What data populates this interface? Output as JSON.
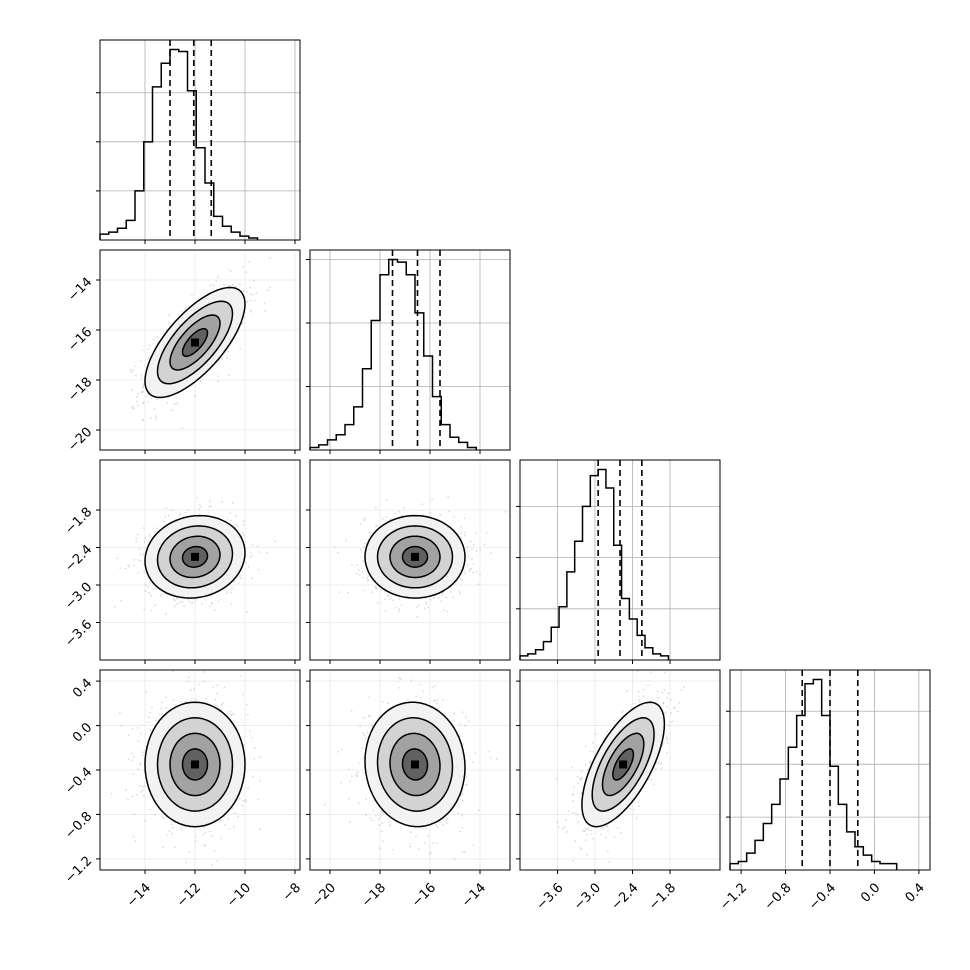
{
  "chart_data": {
    "type": "corner",
    "grid": true,
    "quantile_lines": "dashed",
    "parameters": [
      {
        "name": "",
        "range": [
          -15.8,
          -7.8
        ],
        "ticks": [
          -14,
          -12,
          -10,
          -8
        ],
        "tick_labels": [
          "−14",
          "−12",
          "−10",
          "−8"
        ],
        "quantiles": [
          -13.0,
          -12.05,
          -11.35
        ],
        "histogram": {
          "bin_start": -15.8,
          "bin_width": 0.35,
          "counts": [
            3,
            4,
            6,
            10,
            25,
            50,
            78,
            90,
            97,
            96,
            76,
            47,
            29,
            12,
            7,
            4,
            2,
            1
          ]
        }
      },
      {
        "name": "",
        "range": [
          -20.8,
          -12.8
        ],
        "ticks": [
          -20,
          -18,
          -16,
          -14
        ],
        "tick_labels": [
          "−20",
          "−18",
          "−16",
          "−14"
        ],
        "quantiles": [
          -17.5,
          -16.5,
          -15.6
        ],
        "histogram": {
          "bin_start": -20.8,
          "bin_width": 0.35,
          "counts": [
            1,
            2,
            4,
            6,
            10,
            17,
            32,
            51,
            69,
            75,
            74,
            69,
            54,
            37,
            21,
            10,
            5,
            3,
            1
          ]
        }
      },
      {
        "name": "",
        "range": [
          -4.2,
          -1.0
        ],
        "ticks": [
          -3.6,
          -3.0,
          -2.4,
          -1.8
        ],
        "tick_labels": [
          "−3.6",
          "−3.0",
          "−2.4",
          "−1.8"
        ],
        "quantiles": [
          -2.95,
          -2.6,
          -2.25
        ],
        "histogram": {
          "bin_start": -4.2,
          "bin_width": 0.125,
          "counts": [
            2,
            3,
            5,
            9,
            16,
            26,
            43,
            58,
            75,
            90,
            93,
            84,
            56,
            30,
            20,
            12,
            6,
            3,
            2
          ]
        }
      },
      {
        "name": "",
        "range": [
          -1.3,
          0.5
        ],
        "ticks": [
          -1.2,
          -0.8,
          -0.4,
          0.0,
          0.4
        ],
        "tick_labels": [
          "−1.2",
          "−0.8",
          "−0.4",
          "0.0",
          "0.4"
        ],
        "quantiles": [
          -0.65,
          -0.4,
          -0.15
        ],
        "histogram": {
          "bin_start": -1.3,
          "bin_width": 0.075,
          "counts": [
            3,
            4,
            8,
            14,
            22,
            31,
            43,
            58,
            73,
            88,
            90,
            73,
            49,
            31,
            18,
            11,
            7,
            4,
            3,
            3
          ]
        }
      }
    ],
    "pairs": [
      {
        "row": 1,
        "col": 0,
        "center": [
          -12.0,
          -16.5
        ],
        "sd": [
          1.0,
          1.1
        ],
        "corr": 0.7
      },
      {
        "row": 2,
        "col": 0,
        "center": [
          -12.0,
          -2.55
        ],
        "sd": [
          1.0,
          0.33
        ],
        "corr": 0.1
      },
      {
        "row": 2,
        "col": 1,
        "center": [
          -16.6,
          -2.55
        ],
        "sd": [
          1.0,
          0.33
        ],
        "corr": 0.0
      },
      {
        "row": 3,
        "col": 0,
        "center": [
          -12.0,
          -0.35
        ],
        "sd": [
          1.0,
          0.28
        ],
        "corr": 0.0
      },
      {
        "row": 3,
        "col": 1,
        "center": [
          -16.6,
          -0.35
        ],
        "sd": [
          1.0,
          0.28
        ],
        "corr": -0.05
      },
      {
        "row": 3,
        "col": 2,
        "center": [
          -2.55,
          -0.35
        ],
        "sd": [
          0.33,
          0.28
        ],
        "corr": 0.65
      }
    ]
  }
}
